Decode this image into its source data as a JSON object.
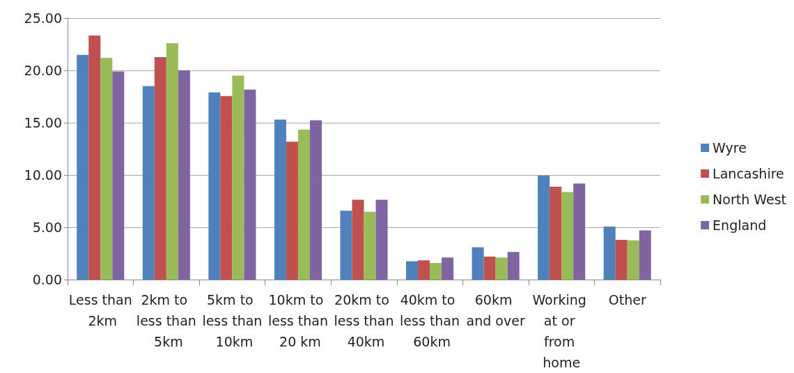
{
  "chart_data": {
    "type": "bar",
    "categories": [
      "Less than 2km",
      "2km to less than 5km",
      "5km to less than 10km",
      "10km to less than 20 km",
      "20km to less than 40km",
      "40km to less than 60km",
      "60km and over",
      "Working at or from home",
      "Other"
    ],
    "series": [
      {
        "name": "Wyre",
        "color": "#4f81bd",
        "values": [
          21.48,
          18.5,
          17.9,
          15.3,
          6.59,
          1.75,
          3.09,
          9.95,
          5.07
        ]
      },
      {
        "name": "Lancashire",
        "color": "#c0504d",
        "values": [
          23.34,
          21.27,
          17.55,
          13.18,
          7.64,
          1.84,
          2.2,
          8.89,
          3.8
        ]
      },
      {
        "name": "North West",
        "color": "#9bbb59",
        "values": [
          21.2,
          22.6,
          19.5,
          14.34,
          6.48,
          1.59,
          2.11,
          8.36,
          3.75
        ]
      },
      {
        "name": "England",
        "color": "#8064a2",
        "values": [
          19.9,
          20.02,
          18.16,
          15.23,
          7.64,
          2.11,
          2.64,
          9.18,
          4.7
        ]
      }
    ],
    "ylim": [
      0,
      25
    ],
    "yticks": [
      {
        "value": 0,
        "label": "0.00"
      },
      {
        "value": 5,
        "label": "5.00"
      },
      {
        "value": 10,
        "label": "10.00"
      },
      {
        "value": 15,
        "label": "15.00"
      },
      {
        "value": 20,
        "label": "20.00"
      },
      {
        "value": 25,
        "label": "25.00"
      }
    ],
    "grid": "y",
    "legend": "right"
  }
}
